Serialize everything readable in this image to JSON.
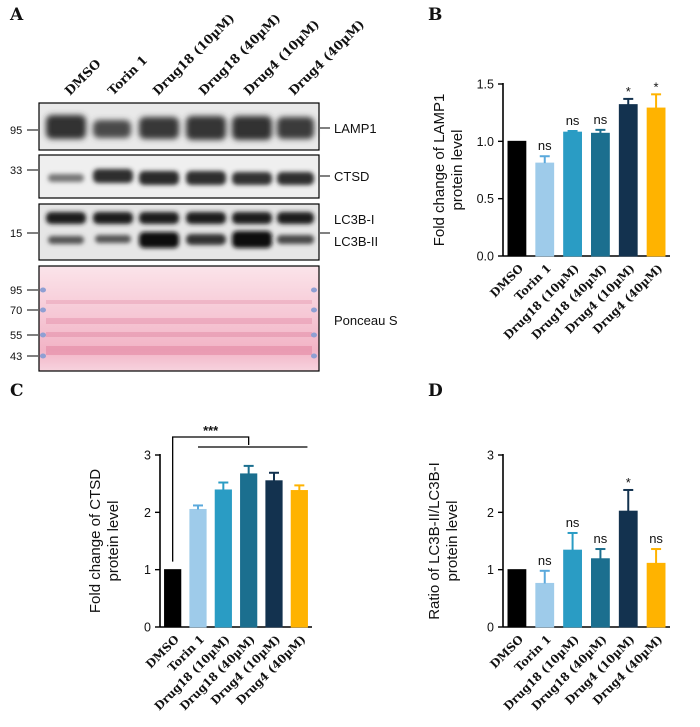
{
  "panel_a": {
    "letter": "A",
    "lanes": [
      "DMSO",
      "Torin 1",
      "Drug18 (10µM)",
      "Drug18 (40µM)",
      "Drug4 (10µM)",
      "Drug4 (40µM)"
    ],
    "blots": [
      {
        "label": "LAMP1",
        "markers": [
          "95"
        ]
      },
      {
        "label": "CTSD",
        "markers": [
          "33"
        ]
      },
      {
        "label": "LC3B-I",
        "label2": "LC3B-II",
        "markers": [
          "15"
        ]
      },
      {
        "label": "Ponceau S",
        "markers": [
          "95",
          "70",
          "55",
          "43"
        ]
      }
    ]
  },
  "chart_data": [
    {
      "id": "B",
      "letter": "B",
      "type": "bar",
      "ylabel": "Fold change of LAMP1 protein level",
      "ylabel_lines": [
        "Fold change of LAMP1",
        "protein level"
      ],
      "categories": [
        "DMSO",
        "Torin 1",
        "Drug18 (10µM)",
        "Drug18 (40µM)",
        "Drug4 (10µM)",
        "Drug4 (40µM)"
      ],
      "values": [
        1.0,
        0.81,
        1.08,
        1.07,
        1.32,
        1.29
      ],
      "errors": [
        0,
        0.06,
        0.01,
        0.03,
        0.05,
        0.12
      ],
      "significance": [
        "",
        "ns",
        "ns",
        "ns",
        "*",
        "*"
      ],
      "ylim": [
        0,
        1.5
      ],
      "yticks": [
        "0.0",
        "0.5",
        "1.0",
        "1.5"
      ],
      "colors": [
        "#000000",
        "#9ecbea",
        "#2a9cc4",
        "#1b6f8f",
        "#13324f",
        "#ffb300"
      ]
    },
    {
      "id": "C",
      "letter": "C",
      "type": "bar",
      "ylabel": "Fold change of CTSD protein level",
      "ylabel_lines": [
        "Fold change of CTSD",
        "protein level"
      ],
      "categories": [
        "DMSO",
        "Torin 1",
        "Drug18 (10µM)",
        "Drug18 (40µM)",
        "Drug4 (10µM)",
        "Drug4 (40µM)"
      ],
      "values": [
        1.0,
        2.05,
        2.39,
        2.67,
        2.55,
        2.38
      ],
      "errors": [
        0,
        0.07,
        0.13,
        0.14,
        0.14,
        0.09
      ],
      "significance": [
        "",
        "",
        "",
        "",
        "",
        ""
      ],
      "bracket": "***",
      "ylim": [
        0,
        3
      ],
      "yticks": [
        "0",
        "1",
        "2",
        "3"
      ],
      "colors": [
        "#000000",
        "#9ecbea",
        "#2a9cc4",
        "#1b6f8f",
        "#13324f",
        "#ffb300"
      ]
    },
    {
      "id": "D",
      "letter": "D",
      "type": "bar",
      "ylabel": "Ratio of LC3B-II/LC3B-I protein level",
      "ylabel_lines": [
        "Ratio of LC3B-II/LC3B-I",
        "protein level"
      ],
      "categories": [
        "DMSO",
        "Torin 1",
        "Drug18 (10µM)",
        "Drug18 (40µM)",
        "Drug4 (10µM)",
        "Drug4 (40µM)"
      ],
      "values": [
        1.0,
        0.76,
        1.34,
        1.19,
        2.02,
        1.11
      ],
      "errors": [
        0,
        0.22,
        0.3,
        0.17,
        0.37,
        0.25
      ],
      "significance": [
        "",
        "ns",
        "ns",
        "ns",
        "*",
        "ns"
      ],
      "ylim": [
        0,
        3
      ],
      "yticks": [
        "0",
        "1",
        "2",
        "3"
      ],
      "colors": [
        "#000000",
        "#9ecbea",
        "#2a9cc4",
        "#1b6f8f",
        "#13324f",
        "#ffb300"
      ]
    }
  ]
}
